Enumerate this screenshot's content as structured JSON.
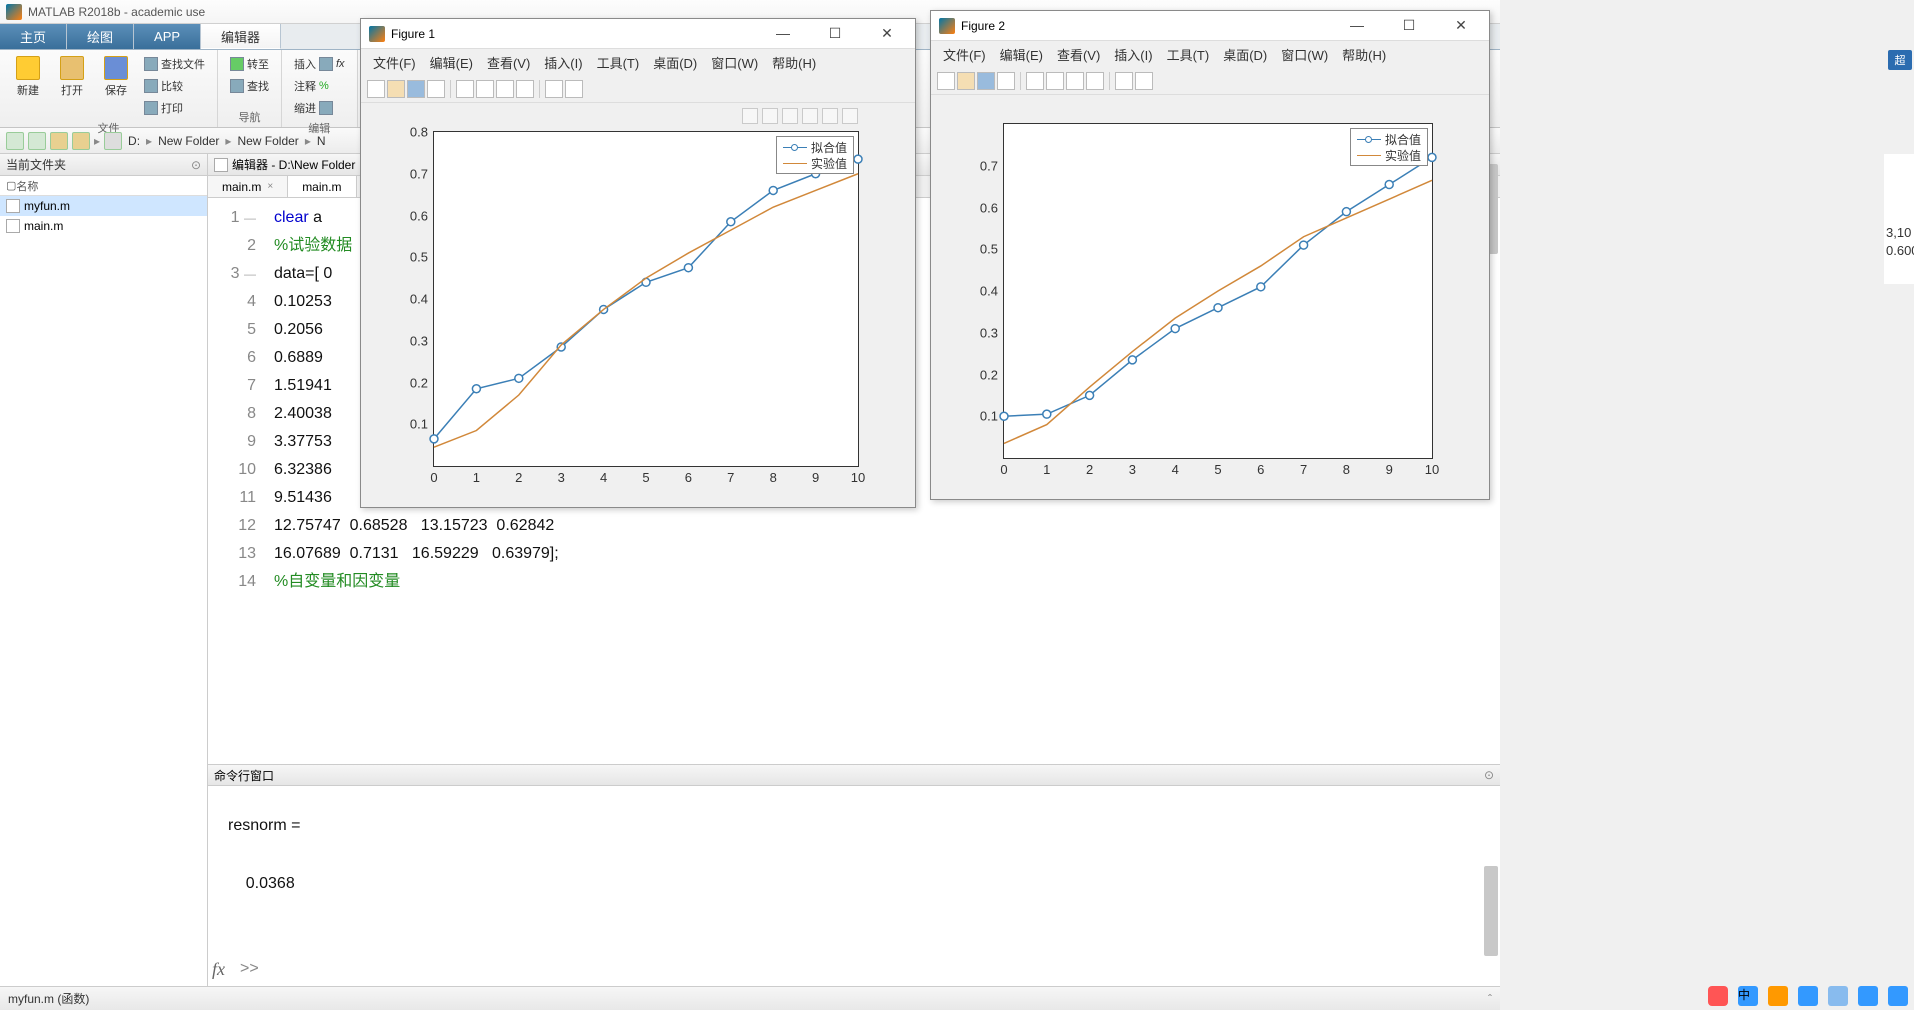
{
  "main_title": "MATLAB R2018b - academic use",
  "tabs": {
    "home": "主页",
    "plot": "绘图",
    "app": "APP",
    "editor": "编辑器"
  },
  "toolstrip": {
    "new": "新建",
    "open": "打开",
    "save": "保存",
    "findfiles": "查找文件",
    "compare": "比较",
    "print": "打印",
    "goto": "转至",
    "find": "查找",
    "insert": "插入",
    "comment": "注释",
    "indent": "缩进",
    "g_file": "文件",
    "g_nav": "导航",
    "g_edit": "编辑"
  },
  "addr": {
    "drive": "D:",
    "c1": "New Folder",
    "c2": "New Folder",
    "c3": "N"
  },
  "leftpanel": {
    "title": "当前文件夹",
    "colhdr": "名称",
    "files": [
      "myfun.m",
      "main.m"
    ]
  },
  "editor": {
    "hdr": "编辑器 - D:\\New Folder",
    "tab1": "main.m",
    "tab2": "main.m",
    "lines": [
      {
        "n": "1",
        "dash": "—",
        "t": "clear a",
        "cls": "kw-partial"
      },
      {
        "n": "2",
        "dash": "",
        "t": "%试验数据",
        "cls": "cm"
      },
      {
        "n": "3",
        "dash": "—",
        "t": "data=[ 0",
        "cls": ""
      },
      {
        "n": "4",
        "dash": "",
        "t": "0.10253",
        "cls": ""
      },
      {
        "n": "5",
        "dash": "",
        "t": "0.2056",
        "cls": ""
      },
      {
        "n": "6",
        "dash": "",
        "t": "0.6889",
        "cls": ""
      },
      {
        "n": "7",
        "dash": "",
        "t": "1.51941",
        "cls": ""
      },
      {
        "n": "8",
        "dash": "",
        "t": "2.40038",
        "cls": ""
      },
      {
        "n": "9",
        "dash": "",
        "t": "3.37753",
        "cls": ""
      },
      {
        "n": "10",
        "dash": "",
        "t": "6.32386",
        "cls": ""
      },
      {
        "n": "11",
        "dash": "",
        "t": "9.51436",
        "cls": ""
      },
      {
        "n": "12",
        "dash": "",
        "t": "12.75747  0.68528   13.15723  0.62842",
        "cls": ""
      },
      {
        "n": "13",
        "dash": "",
        "t": "16.07689  0.7131   16.59229   0.63979];",
        "cls": ""
      },
      {
        "n": "14",
        "dash": "",
        "t": "%自变量和因变量",
        "cls": "cm"
      }
    ]
  },
  "cmd": {
    "title": "命令行窗口",
    "out1": "resnorm =",
    "out2": "    0.0368"
  },
  "status": {
    "text": "myfun.m  (函数)"
  },
  "rightclip": {
    "l1": "3,10",
    "l2": "0.600"
  },
  "topbadge": "超",
  "figure1": {
    "title": "Figure 1",
    "menus": [
      "文件(F)",
      "编辑(E)",
      "查看(V)",
      "插入(I)",
      "工具(T)",
      "桌面(D)",
      "窗口(W)",
      "帮助(H)"
    ],
    "legend": [
      "拟合值",
      "实验值"
    ],
    "chart": {
      "type": "line",
      "xlim": [
        0,
        10
      ],
      "ylim": [
        0,
        0.8
      ],
      "xticks": [
        0,
        1,
        2,
        3,
        4,
        5,
        6,
        7,
        8,
        9,
        10
      ],
      "yticks": [
        0.1,
        0.2,
        0.3,
        0.4,
        0.5,
        0.6,
        0.7,
        0.8
      ],
      "series": [
        {
          "name": "fit",
          "color": "#3b7fb6",
          "marker": "o",
          "x": [
            0,
            1,
            2,
            3,
            4,
            5,
            6,
            7,
            8,
            9,
            10
          ],
          "y": [
            0.065,
            0.185,
            0.21,
            0.285,
            0.375,
            0.44,
            0.475,
            0.585,
            0.66,
            0.7,
            0.735
          ]
        },
        {
          "name": "exp",
          "color": "#d1883a",
          "marker": "none",
          "x": [
            0,
            1,
            2,
            3,
            4,
            5,
            6,
            7,
            8,
            9,
            10
          ],
          "y": [
            0.045,
            0.085,
            0.17,
            0.29,
            0.375,
            0.45,
            0.51,
            0.565,
            0.62,
            0.66,
            0.7
          ]
        }
      ],
      "bg": "#ffffff",
      "axis_color": "#333333",
      "label_fontsize": 13
    }
  },
  "figure2": {
    "title": "Figure 2",
    "menus": [
      "文件(F)",
      "编辑(E)",
      "查看(V)",
      "插入(I)",
      "工具(T)",
      "桌面(D)",
      "窗口(W)",
      "帮助(H)"
    ],
    "legend": [
      "拟合值",
      "实验值"
    ],
    "chart": {
      "type": "line",
      "xlim": [
        0,
        10
      ],
      "ylim": [
        0,
        0.8
      ],
      "xticks": [
        0,
        1,
        2,
        3,
        4,
        5,
        6,
        7,
        8,
        9,
        10
      ],
      "yticks": [
        0.1,
        0.2,
        0.3,
        0.4,
        0.5,
        0.6,
        0.7
      ],
      "series": [
        {
          "name": "fit",
          "color": "#3b7fb6",
          "marker": "o",
          "x": [
            0,
            1,
            2,
            3,
            4,
            5,
            6,
            7,
            8,
            9,
            10
          ],
          "y": [
            0.1,
            0.105,
            0.15,
            0.235,
            0.31,
            0.36,
            0.41,
            0.51,
            0.59,
            0.655,
            0.72
          ]
        },
        {
          "name": "exp",
          "color": "#d1883a",
          "marker": "none",
          "x": [
            0,
            1,
            2,
            3,
            4,
            5,
            6,
            7,
            8,
            9,
            10
          ],
          "y": [
            0.035,
            0.08,
            0.17,
            0.255,
            0.335,
            0.4,
            0.46,
            0.53,
            0.575,
            0.62,
            0.665
          ]
        }
      ],
      "bg": "#ffffff",
      "axis_color": "#333333",
      "label_fontsize": 13
    }
  }
}
